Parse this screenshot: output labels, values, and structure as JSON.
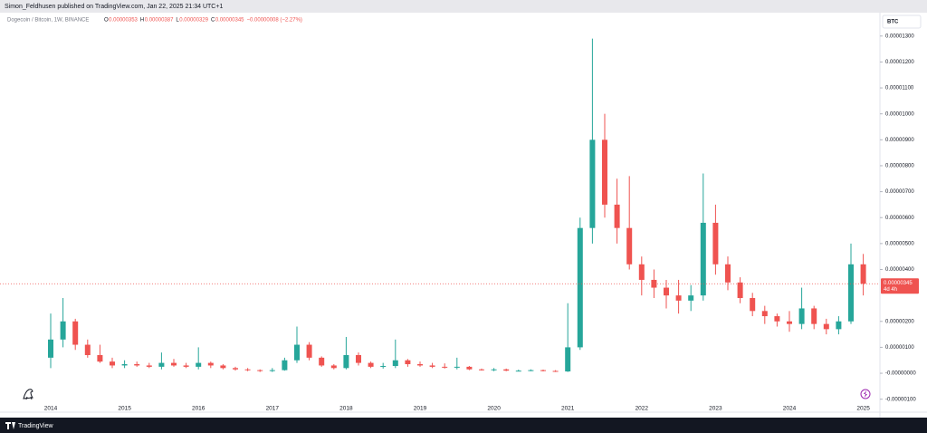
{
  "header": {
    "publisher": "Simon_Feldhusen published on TradingView.com, Jan 22, 2025 21:34 UTC+1"
  },
  "footer": {
    "brand": "TradingView"
  },
  "chart_data": {
    "type": "candlestick",
    "title": "Dogecoin / Bitcoin, 1W, BINANCE",
    "legend": {
      "o": "O",
      "o_value": 3.53e-06,
      "h": "H",
      "h_value": 3.87e-06,
      "l": "L",
      "l_value": 3.29e-06,
      "c": "C",
      "c_value": 3.45e-06,
      "change": "−0.00000008 (−2.27%)"
    },
    "currency_button": "BTC",
    "last_price": 3.45e-06,
    "countdown": "4d 4h",
    "up_color": "#26a69a",
    "down_color": "#ef5350",
    "categories": [
      "2014",
      null,
      null,
      null,
      null,
      null,
      "2015",
      null,
      null,
      null,
      null,
      null,
      "2016",
      null,
      null,
      null,
      null,
      null,
      "2017",
      null,
      null,
      null,
      null,
      null,
      "2018",
      null,
      null,
      null,
      null,
      null,
      "2019",
      null,
      null,
      null,
      null,
      null,
      "2020",
      null,
      null,
      null,
      null,
      null,
      "2021",
      null,
      null,
      null,
      null,
      null,
      "2022",
      null,
      null,
      null,
      null,
      null,
      "2023",
      null,
      null,
      null,
      null,
      null,
      "2024",
      null,
      null,
      null,
      null,
      null,
      "2025"
    ],
    "open": [
      6e-07,
      1.3e-06,
      2e-06,
      1.1e-06,
      7e-07,
      4.5e-07,
      3e-07,
      3.5e-07,
      3e-07,
      2.5e-07,
      4e-07,
      3e-07,
      2.5e-07,
      4e-07,
      3e-07,
      2e-07,
      1.5e-07,
      1.2e-07,
      1e-07,
      1.2e-07,
      5e-07,
      1.1e-06,
      6e-07,
      3e-07,
      2e-07,
      7e-07,
      4e-07,
      2.5e-07,
      2.8e-07,
      5e-07,
      3.5e-07,
      3e-07,
      2.5e-07,
      2.2e-07,
      2.5e-07,
      1.5e-07,
      1.2e-07,
      1.5e-07,
      1e-07,
      1e-07,
      1.2e-07,
      9e-08,
      7e-08,
      1e-06,
      5.6e-06,
      9e-06,
      6.5e-06,
      5.6e-06,
      4.2e-06,
      3.6e-06,
      3.3e-06,
      3e-06,
      2.8e-06,
      3e-06,
      5.8e-06,
      4.2e-06,
      3.5e-06,
      2.9e-06,
      2.4e-06,
      2.2e-06,
      2e-06,
      1.9e-06,
      2.5e-06,
      1.9e-06,
      1.7e-06,
      2e-06,
      4.2e-06
    ],
    "high": [
      2.3e-06,
      2.9e-06,
      2.1e-06,
      1.3e-06,
      1.1e-06,
      6e-07,
      5e-07,
      4.5e-07,
      4e-07,
      8e-07,
      5.5e-07,
      4e-07,
      1e-06,
      4.5e-07,
      3.5e-07,
      2.5e-07,
      2e-07,
      1.5e-07,
      2e-07,
      6e-07,
      1.8e-06,
      1.2e-06,
      6.5e-07,
      3.5e-07,
      1.4e-06,
      8e-07,
      4.5e-07,
      4e-07,
      1.3e-06,
      5.5e-07,
      4.5e-07,
      4e-07,
      3.8e-07,
      6e-07,
      2.8e-07,
      1.8e-07,
      2e-07,
      1.8e-07,
      1.4e-07,
      1.5e-07,
      1.4e-07,
      1.2e-07,
      2.7e-06,
      6e-06,
      1.29e-05,
      1e-05,
      7.5e-06,
      7.6e-06,
      4.5e-06,
      4e-06,
      3.6e-06,
      3.6e-06,
      3.4e-06,
      7.7e-06,
      6.5e-06,
      4.5e-06,
      3.7e-06,
      3.1e-06,
      2.6e-06,
      2.3e-06,
      2.4e-06,
      3.3e-06,
      2.6e-06,
      2.1e-06,
      2.2e-06,
      5e-06,
      4.6e-06
    ],
    "low": [
      2e-07,
      1e-06,
      9e-07,
      6e-07,
      4e-07,
      2e-07,
      2e-07,
      2.5e-07,
      2e-07,
      1.5e-07,
      2.5e-07,
      2e-07,
      1.5e-07,
      2e-07,
      1.5e-07,
      1e-07,
      8e-08,
      5e-08,
      5e-08,
      1e-07,
      4e-07,
      5e-07,
      2.5e-07,
      1.5e-07,
      1.5e-07,
      3e-07,
      2e-07,
      1.8e-07,
      2e-07,
      2.5e-07,
      2.5e-07,
      2e-07,
      1.8e-07,
      1.5e-07,
      1.2e-07,
      1e-07,
      8e-08,
      8e-08,
      7e-08,
      8e-08,
      7e-08,
      5e-08,
      5e-08,
      9e-07,
      5e-06,
      6e-06,
      5e-06,
      4e-06,
      3e-06,
      2.9e-06,
      2.5e-06,
      2.3e-06,
      2.4e-06,
      2.8e-06,
      3.8e-06,
      3.2e-06,
      2.7e-06,
      2.2e-06,
      1.9e-06,
      1.8e-06,
      1.6e-06,
      1.7e-06,
      1.7e-06,
      1.5e-06,
      1.5e-06,
      1.9e-06,
      3e-06
    ],
    "close": [
      1.3e-06,
      2e-06,
      1.1e-06,
      7e-07,
      4.5e-07,
      3e-07,
      3.5e-07,
      3e-07,
      2.5e-07,
      4e-07,
      3e-07,
      2.5e-07,
      4e-07,
      3e-07,
      2e-07,
      1.5e-07,
      1.2e-07,
      1e-07,
      1.2e-07,
      5e-07,
      1.1e-06,
      6e-07,
      3e-07,
      2e-07,
      7e-07,
      4e-07,
      2.5e-07,
      2.8e-07,
      5e-07,
      3.5e-07,
      3e-07,
      2.5e-07,
      2.2e-07,
      2.5e-07,
      1.5e-07,
      1.2e-07,
      1.5e-07,
      1e-07,
      1e-07,
      1.2e-07,
      9e-08,
      7e-08,
      1e-06,
      5.6e-06,
      9e-06,
      6.5e-06,
      5.6e-06,
      4.2e-06,
      3.6e-06,
      3.3e-06,
      3e-06,
      2.8e-06,
      3e-06,
      5.8e-06,
      4.2e-06,
      3.5e-06,
      2.9e-06,
      2.4e-06,
      2.2e-06,
      2e-06,
      1.9e-06,
      2.5e-06,
      1.9e-06,
      1.7e-06,
      2e-06,
      4.2e-06,
      3.45e-06
    ],
    "ylim": [
      -1.5e-06,
      1.39e-05
    ],
    "yticks": [
      {
        "value": 1.3e-05,
        "label": "0.00001300"
      },
      {
        "value": 1.2e-05,
        "label": "0.00001200"
      },
      {
        "value": 1.1e-05,
        "label": "0.00001100"
      },
      {
        "value": 1e-05,
        "label": "0.00001000"
      },
      {
        "value": 9e-06,
        "label": "0.00000900"
      },
      {
        "value": 8e-06,
        "label": "0.00000800"
      },
      {
        "value": 7e-06,
        "label": "0.00000700"
      },
      {
        "value": 6e-06,
        "label": "0.00000600"
      },
      {
        "value": 5e-06,
        "label": "0.00000500"
      },
      {
        "value": 4e-06,
        "label": "0.00000400"
      },
      {
        "value": 2e-06,
        "label": "0.00000200"
      },
      {
        "value": 1e-06,
        "label": "0.00000100"
      },
      {
        "value": 0,
        "label": "-0.00000000"
      },
      {
        "value": -1e-06,
        "label": "-0.00000100"
      }
    ],
    "grid": false
  }
}
